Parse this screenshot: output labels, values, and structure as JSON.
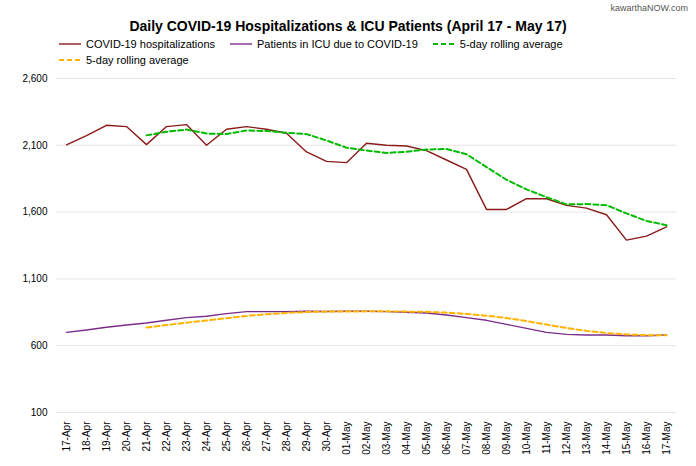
{
  "chart_data": {
    "type": "line",
    "title": "Daily COVID-19 Hospitalizations & ICU Patients (April 17 - May 17)",
    "annotations": [
      "kawarthaNOW.com"
    ],
    "categories": [
      "17-Apr",
      "18-Apr",
      "19-Apr",
      "20-Apr",
      "21-Apr",
      "22-Apr",
      "23-Apr",
      "24-Apr",
      "25-Apr",
      "26-Apr",
      "27-Apr",
      "28-Apr",
      "29-Apr",
      "30-Apr",
      "01-May",
      "02-May",
      "03-May",
      "04-May",
      "05-May",
      "06-May",
      "07-May",
      "08-May",
      "09-May",
      "10-May",
      "11-May",
      "12-May",
      "13-May",
      "14-May",
      "15-May",
      "16-May",
      "17-May"
    ],
    "series": [
      {
        "name": "COVID-19 hospitalizations",
        "color": "#8B1A1A",
        "line_style": "solid",
        "values": [
          2104,
          2172,
          2250,
          2240,
          2105,
          2240,
          2255,
          2100,
          2220,
          2240,
          2220,
          2190,
          2050,
          1980,
          1970,
          2115,
          2100,
          2095,
          2060,
          1990,
          1920,
          1620,
          1620,
          1700,
          1700,
          1650,
          1630,
          1580,
          1390,
          1420,
          1490
        ]
      },
      {
        "name": "Patients in ICU due to COVID-19",
        "color": "#7B2D8B",
        "line_style": "solid",
        "values": [
          700,
          718,
          738,
          755,
          770,
          790,
          810,
          820,
          840,
          855,
          855,
          855,
          858,
          856,
          858,
          858,
          855,
          850,
          845,
          830,
          810,
          790,
          760,
          730,
          700,
          685,
          680,
          680,
          675,
          675,
          680
        ]
      },
      {
        "name": "5-day rolling average",
        "color": "#00BB00",
        "line_style": "dashed",
        "values": [
          null,
          null,
          null,
          null,
          2174.2,
          2201.4,
          2218,
          2188,
          2184,
          2211,
          2207,
          2194,
          2184,
          2136,
          2082,
          2061,
          2043,
          2052,
          2068,
          2072,
          2033,
          1937,
          1842,
          1770,
          1712,
          1658,
          1660,
          1652,
          1590,
          1534,
          1502
        ]
      },
      {
        "name": "5-day rolling average",
        "color": "#FFB300",
        "line_style": "dashed",
        "values": [
          null,
          null,
          null,
          null,
          736.2,
          754.2,
          772.6,
          789,
          806,
          823,
          836,
          845,
          852.6,
          855.8,
          856.4,
          857,
          857,
          855.4,
          853.2,
          847.6,
          838,
          825,
          807,
          784,
          758,
          733,
          711,
          695,
          684,
          679,
          678
        ]
      }
    ],
    "ylim": [
      100,
      2600
    ],
    "yticks": [
      100,
      600,
      {
        "value": 1100,
        "label": "1,100"
      },
      {
        "value": 1600,
        "label": "1,600"
      },
      {
        "value": 2100,
        "label": "2,100"
      },
      {
        "value": 2600,
        "label": "2,600"
      }
    ],
    "grid": true,
    "legend": "top"
  }
}
